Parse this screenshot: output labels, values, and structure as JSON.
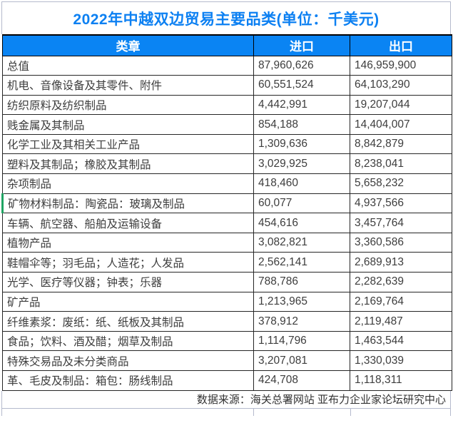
{
  "title": "2022年中越双边贸易主要品类(单位：千美元)",
  "footer": {
    "source_text": "数据来源：海关总署网站 亚布力企业家论坛研究中心"
  },
  "colors": {
    "header_blue": "#0a84f3",
    "title_blue": "#0c80f2",
    "marker_green": "#1fa463",
    "grid_dark": "#262626",
    "grid_light": "#b5bacd"
  },
  "chart_data": {
    "type": "table",
    "title": "2022年中越双边贸易主要品类(单位：千美元)",
    "unit": "千美元",
    "columns": [
      "类章",
      "进口",
      "出口"
    ],
    "rows": [
      {
        "category": "总值",
        "import": "87,960,626",
        "export": "146,959,900"
      },
      {
        "category": "机电、音像设备及其零件、附件",
        "import": "60,551,524",
        "export": "64,103,290"
      },
      {
        "category": "纺织原料及纺织制品",
        "import": "4,442,991",
        "export": "19,207,044"
      },
      {
        "category": "贱金属及其制品",
        "import": "854,188",
        "export": "14,404,007"
      },
      {
        "category": "化学工业及其相关工业产品",
        "import": "1,309,636",
        "export": "8,842,879"
      },
      {
        "category": "塑料及其制品；橡胶及其制品",
        "import": "3,029,925",
        "export": "8,238,041"
      },
      {
        "category": "杂项制品",
        "import": "418,460",
        "export": "5,658,232"
      },
      {
        "category": "矿物材料制品：陶瓷品：玻璃及制品",
        "import": "60,077",
        "export": "4,937,566",
        "marker": true
      },
      {
        "category": "车辆、航空器、船舶及运输设备",
        "import": "454,616",
        "export": "3,457,764"
      },
      {
        "category": "植物产品",
        "import": "3,082,821",
        "export": "3,360,586"
      },
      {
        "category": "鞋帽伞等；羽毛品；人造花；人发品",
        "import": "2,562,141",
        "export": "2,689,913"
      },
      {
        "category": "光学、医疗等仪器；钟表；乐器",
        "import": "788,786",
        "export": "2,282,639"
      },
      {
        "category": "矿产品",
        "import": "1,213,965",
        "export": "2,169,764"
      },
      {
        "category": "纤维素浆：废纸：纸、纸板及其制品",
        "import": "378,912",
        "export": "2,119,487"
      },
      {
        "category": "食品；饮料、酒及醋；烟草及制品",
        "import": "1,114,796",
        "export": "1,463,544"
      },
      {
        "category": "特殊交易品及未分类商品",
        "import": "3,207,081",
        "export": "1,330,039"
      },
      {
        "category": "革、毛皮及制品：箱包：肠线制品",
        "import": "424,708",
        "export": "1,118,311"
      }
    ],
    "source": "数据来源：海关总署网站 亚布力企业家论坛研究中心",
    "layout": {
      "grid": true,
      "header_style": "blue-filled",
      "number_alignment": "left"
    }
  }
}
